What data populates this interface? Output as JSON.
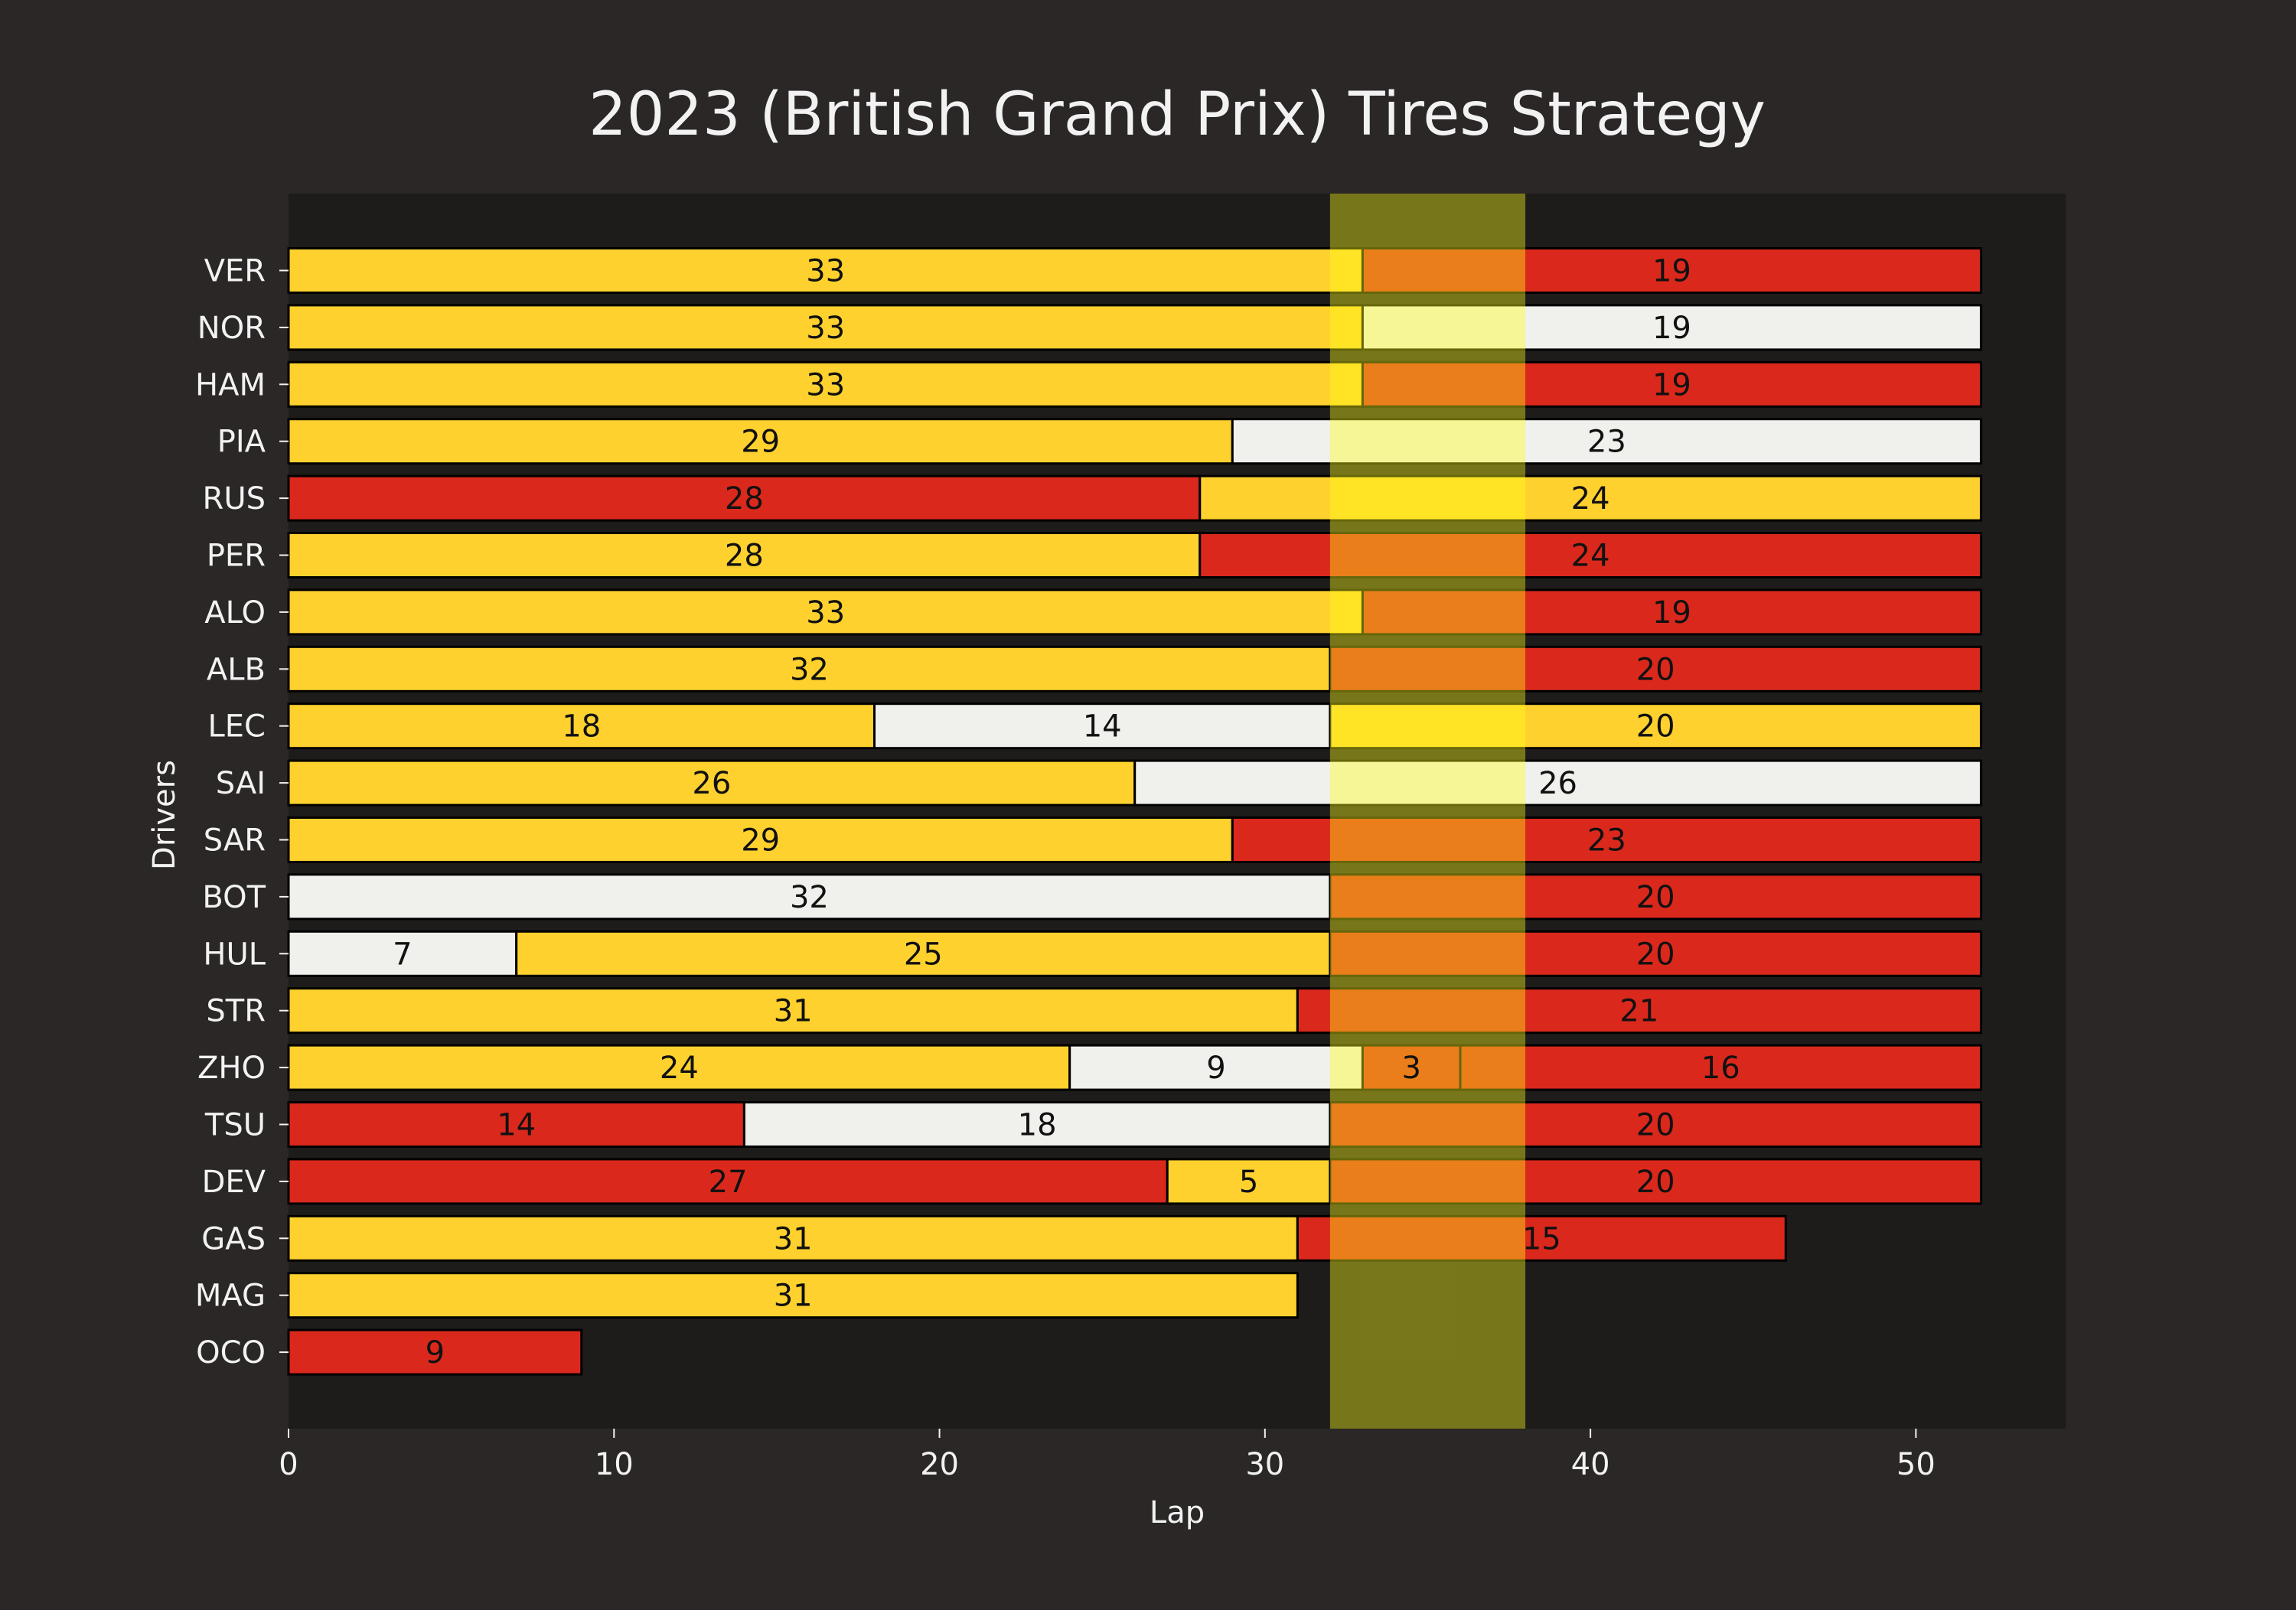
{
  "chart_data": {
    "type": "bar",
    "orientation": "horizontal",
    "stacked": true,
    "title": "2023 (British Grand Prix) Tires Strategy",
    "xlabel": "Lap",
    "ylabel": "Drivers",
    "xlim": [
      0,
      54.6
    ],
    "xticks": [
      0,
      10,
      20,
      30,
      40,
      50
    ],
    "grid": false,
    "colors": {
      "figure_bg": "#2a2726",
      "plot_bg": "#1e1c1b",
      "text": "#f2f2f2",
      "SOFT": "#da291c",
      "MEDIUM": "#ffd12e",
      "HARD": "#f0f0ec",
      "highlight_band": "#ffff1a",
      "bar_edge": "#000000"
    },
    "highlight": {
      "x_start": 32,
      "x_end": 38,
      "opacity": 0.4
    },
    "drivers": [
      {
        "name": "VER",
        "stints": [
          {
            "compound": "MEDIUM",
            "laps": 33
          },
          {
            "compound": "SOFT",
            "laps": 19
          }
        ]
      },
      {
        "name": "NOR",
        "stints": [
          {
            "compound": "MEDIUM",
            "laps": 33
          },
          {
            "compound": "HARD",
            "laps": 19
          }
        ]
      },
      {
        "name": "HAM",
        "stints": [
          {
            "compound": "MEDIUM",
            "laps": 33
          },
          {
            "compound": "SOFT",
            "laps": 19
          }
        ]
      },
      {
        "name": "PIA",
        "stints": [
          {
            "compound": "MEDIUM",
            "laps": 29
          },
          {
            "compound": "HARD",
            "laps": 23
          }
        ]
      },
      {
        "name": "RUS",
        "stints": [
          {
            "compound": "SOFT",
            "laps": 28
          },
          {
            "compound": "MEDIUM",
            "laps": 24
          }
        ]
      },
      {
        "name": "PER",
        "stints": [
          {
            "compound": "MEDIUM",
            "laps": 28
          },
          {
            "compound": "SOFT",
            "laps": 24
          }
        ]
      },
      {
        "name": "ALO",
        "stints": [
          {
            "compound": "MEDIUM",
            "laps": 33
          },
          {
            "compound": "SOFT",
            "laps": 19
          }
        ]
      },
      {
        "name": "ALB",
        "stints": [
          {
            "compound": "MEDIUM",
            "laps": 32
          },
          {
            "compound": "SOFT",
            "laps": 20
          }
        ]
      },
      {
        "name": "LEC",
        "stints": [
          {
            "compound": "MEDIUM",
            "laps": 18
          },
          {
            "compound": "HARD",
            "laps": 14
          },
          {
            "compound": "MEDIUM",
            "laps": 20
          }
        ]
      },
      {
        "name": "SAI",
        "stints": [
          {
            "compound": "MEDIUM",
            "laps": 26
          },
          {
            "compound": "HARD",
            "laps": 26
          }
        ]
      },
      {
        "name": "SAR",
        "stints": [
          {
            "compound": "MEDIUM",
            "laps": 29
          },
          {
            "compound": "SOFT",
            "laps": 23
          }
        ]
      },
      {
        "name": "BOT",
        "stints": [
          {
            "compound": "HARD",
            "laps": 32
          },
          {
            "compound": "SOFT",
            "laps": 20
          }
        ]
      },
      {
        "name": "HUL",
        "stints": [
          {
            "compound": "HARD",
            "laps": 7
          },
          {
            "compound": "MEDIUM",
            "laps": 25
          },
          {
            "compound": "SOFT",
            "laps": 20
          }
        ]
      },
      {
        "name": "STR",
        "stints": [
          {
            "compound": "MEDIUM",
            "laps": 31
          },
          {
            "compound": "SOFT",
            "laps": 21
          }
        ]
      },
      {
        "name": "ZHO",
        "stints": [
          {
            "compound": "MEDIUM",
            "laps": 24
          },
          {
            "compound": "HARD",
            "laps": 9
          },
          {
            "compound": "SOFT",
            "laps": 3
          },
          {
            "compound": "SOFT",
            "laps": 16
          }
        ]
      },
      {
        "name": "TSU",
        "stints": [
          {
            "compound": "SOFT",
            "laps": 14
          },
          {
            "compound": "HARD",
            "laps": 18
          },
          {
            "compound": "SOFT",
            "laps": 20
          }
        ]
      },
      {
        "name": "DEV",
        "stints": [
          {
            "compound": "SOFT",
            "laps": 27
          },
          {
            "compound": "MEDIUM",
            "laps": 5
          },
          {
            "compound": "SOFT",
            "laps": 20
          }
        ]
      },
      {
        "name": "GAS",
        "stints": [
          {
            "compound": "MEDIUM",
            "laps": 31
          },
          {
            "compound": "SOFT",
            "laps": 15
          }
        ]
      },
      {
        "name": "MAG",
        "stints": [
          {
            "compound": "MEDIUM",
            "laps": 31
          }
        ]
      },
      {
        "name": "OCO",
        "stints": [
          {
            "compound": "SOFT",
            "laps": 9
          }
        ]
      }
    ]
  }
}
